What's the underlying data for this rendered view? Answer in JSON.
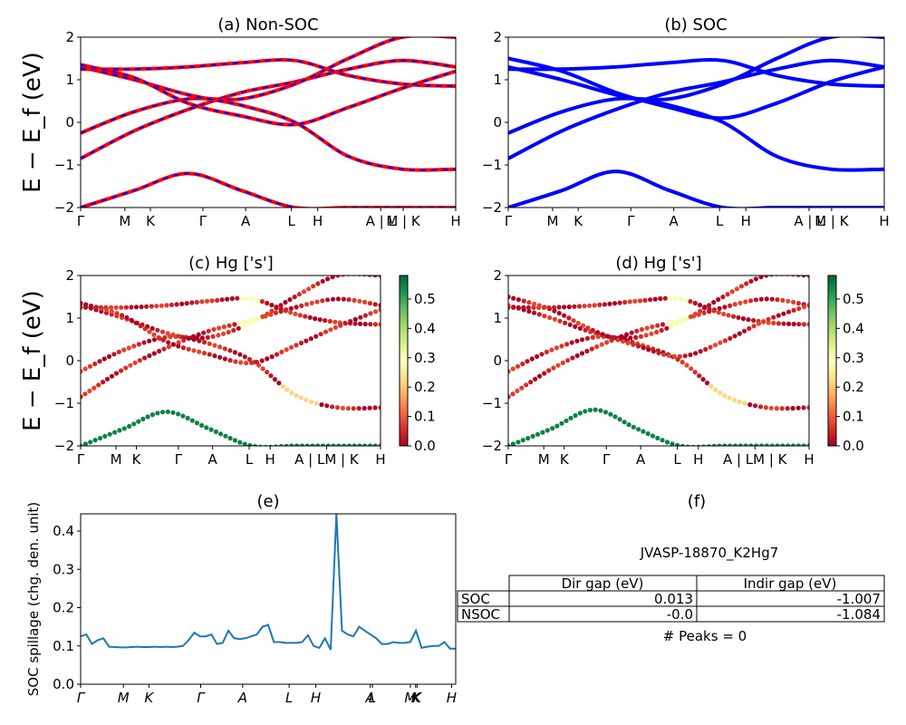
{
  "ylabel_bands": "E − E_f (eV)",
  "chart_data": [
    {
      "id": "a",
      "type": "line",
      "title": "(a) Non-SOC",
      "ylim": [
        -2,
        2
      ],
      "yticks": [
        -2,
        -1,
        0,
        1,
        2
      ],
      "xticks": [
        "Γ",
        "M",
        "K",
        "Γ",
        "A",
        "L",
        "H",
        "A | L",
        "M | K",
        "H"
      ],
      "band_colors": [
        "#ff0000",
        "#0000ff"
      ],
      "line_style": "red solid with blue dashed overlay",
      "approx_band_energies": [
        [
          -0.85,
          -0.2,
          0.3,
          0.7,
          0.95,
          1.25,
          1.45,
          1.3
        ],
        [
          -0.25,
          0.25,
          0.55,
          0.55,
          0.9,
          1.5,
          2.0,
          2.0
        ],
        [
          1.3,
          1.0,
          0.65,
          0.4,
          0.0,
          -0.8,
          -1.1,
          -1.1
        ],
        [
          1.25,
          1.25,
          1.3,
          1.4,
          1.45,
          1.1,
          0.9,
          0.85
        ],
        [
          1.35,
          1.05,
          0.45,
          0.15,
          -0.05,
          0.35,
          0.8,
          1.2
        ],
        [
          -2.0,
          -1.6,
          -1.2,
          -1.6,
          -2.0,
          -2.0,
          -2.0,
          -2.0
        ]
      ]
    },
    {
      "id": "b",
      "type": "line",
      "title": "(b) SOC",
      "ylim": [
        -2,
        2
      ],
      "yticks": [
        -2,
        -1,
        0,
        1,
        2
      ],
      "xticks": [
        "Γ",
        "M",
        "K",
        "Γ",
        "A",
        "L",
        "H",
        "A | L",
        "M | K",
        "H"
      ],
      "band_colors": [
        "#0000ff"
      ],
      "approx_band_energies": [
        [
          -0.85,
          -0.2,
          0.3,
          0.7,
          0.95,
          1.25,
          1.45,
          1.3
        ],
        [
          -0.25,
          0.25,
          0.55,
          0.55,
          0.9,
          1.5,
          2.0,
          2.0
        ],
        [
          1.3,
          1.0,
          0.65,
          0.4,
          0.0,
          -0.8,
          -1.1,
          -1.1
        ],
        [
          1.25,
          1.25,
          1.3,
          1.4,
          1.45,
          1.1,
          0.9,
          0.85
        ],
        [
          1.5,
          1.2,
          0.7,
          0.35,
          0.1,
          0.45,
          0.95,
          1.3
        ],
        [
          -2.0,
          -1.6,
          -1.15,
          -1.6,
          -2.0,
          -2.0,
          -2.0,
          -2.0
        ]
      ]
    },
    {
      "id": "c",
      "type": "scatter",
      "title": "(c)  Hg ['s']",
      "ylim": [
        -2,
        2
      ],
      "yticks": [
        -2,
        -1,
        0,
        1,
        2
      ],
      "xticks": [
        "Γ",
        "M",
        "K",
        "Γ",
        "A",
        "L",
        "H",
        "A | LM | K",
        "H"
      ],
      "colorbar": {
        "range": [
          0.0,
          0.58
        ],
        "ticks": [
          "0.0",
          "0.1",
          "0.2",
          "0.3",
          "0.4",
          "0.5"
        ],
        "colormap": "RdYlGn"
      }
    },
    {
      "id": "d",
      "type": "scatter",
      "title": "(d) Hg ['s']",
      "ylim": [
        -2,
        2
      ],
      "yticks": [
        -2,
        -1,
        0,
        1,
        2
      ],
      "xticks": [
        "Γ",
        "M",
        "K",
        "Γ",
        "A",
        "L",
        "H",
        "A | LM | K",
        "H"
      ],
      "colorbar": {
        "range": [
          0.0,
          0.58
        ],
        "ticks": [
          "0.0",
          "0.1",
          "0.2",
          "0.3",
          "0.4",
          "0.5"
        ],
        "colormap": "RdYlGn"
      }
    },
    {
      "id": "e",
      "type": "line",
      "title": "(e)",
      "ylabel": "SOC spillage (chg. den. unit)",
      "ylim": [
        0.0,
        0.445
      ],
      "yticks": [
        "0.0",
        "0.1",
        "0.2",
        "0.3",
        "0.4"
      ],
      "xticks": [
        "Γ",
        "M",
        "K",
        "Γ",
        "A",
        "L",
        "H",
        "A",
        "L",
        "M",
        "K",
        "K",
        "H"
      ],
      "line_color": "#1f77b4",
      "values": [
        0.125,
        0.13,
        0.105,
        0.115,
        0.12,
        0.098,
        0.097,
        0.096,
        0.096,
        0.097,
        0.098,
        0.097,
        0.097,
        0.098,
        0.097,
        0.098,
        0.097,
        0.098,
        0.1,
        0.115,
        0.135,
        0.125,
        0.125,
        0.13,
        0.105,
        0.108,
        0.14,
        0.12,
        0.118,
        0.12,
        0.125,
        0.13,
        0.15,
        0.155,
        0.11,
        0.11,
        0.108,
        0.108,
        0.108,
        0.11,
        0.128,
        0.1,
        0.095,
        0.12,
        0.09,
        0.445,
        0.14,
        0.13,
        0.125,
        0.15,
        0.14,
        0.13,
        0.12,
        0.105,
        0.105,
        0.11,
        0.108,
        0.108,
        0.11,
        0.14,
        0.095,
        0.098,
        0.1,
        0.1,
        0.11,
        0.093,
        0.093
      ]
    }
  ],
  "panel_f": {
    "title": "(f)",
    "material": "JVASP-18870_K2Hg7",
    "columns": [
      "Dir gap (eV)",
      "Indir gap (eV)"
    ],
    "rows": [
      {
        "label": "SOC",
        "dir": "0.013",
        "indir": "-1.007"
      },
      {
        "label": "NSOC",
        "dir": "-0.0",
        "indir": "-1.084"
      }
    ],
    "peaks": "# Peaks = 0"
  }
}
